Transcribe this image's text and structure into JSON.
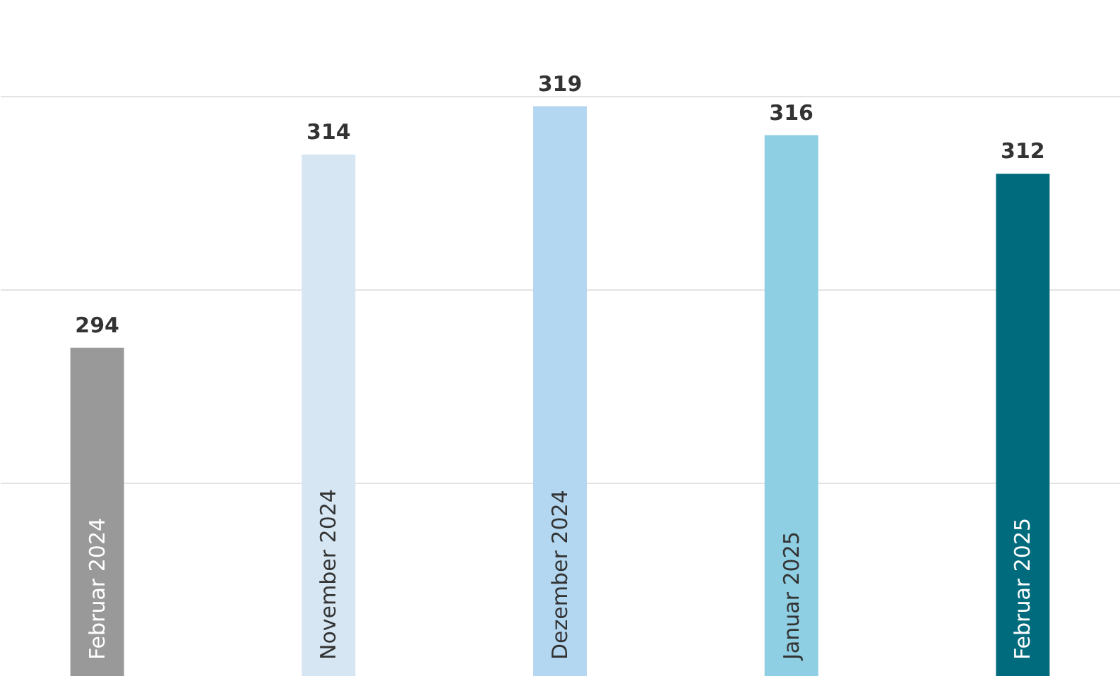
{
  "chart_data": {
    "type": "bar",
    "categories": [
      "Februar 2024",
      "November 2024",
      "Dezember 2024",
      "Januar 2025",
      "Februar  2025"
    ],
    "values": [
      294,
      314,
      319,
      316,
      312
    ],
    "colors": [
      "#999999",
      "#d6e6f2",
      "#b3d7f0",
      "#8fcfe3",
      "#006b7d"
    ],
    "ylim": [
      260,
      330
    ],
    "yticks": [
      {
        "value": 280,
        "label": null
      },
      {
        "value": 300,
        "label": null
      },
      {
        "value": 320,
        "label": null
      }
    ],
    "grid": "y",
    "data_labels": true,
    "tick_labels": "x",
    "legend": false
  }
}
